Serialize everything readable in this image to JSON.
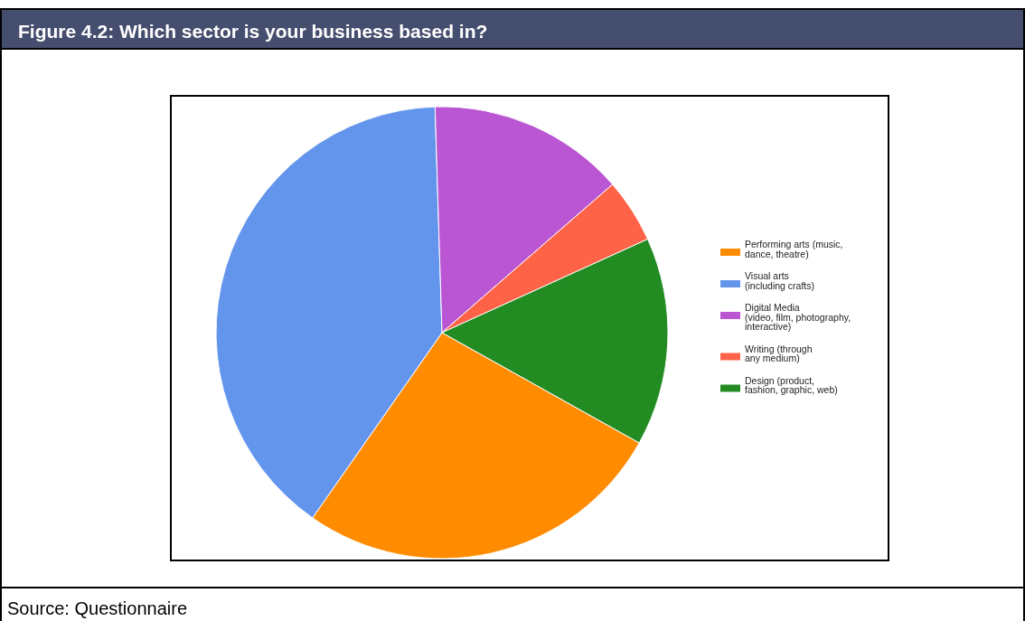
{
  "chart_data": {
    "type": "pie",
    "title": "Figure 4.2: Which sector is your business based in?",
    "categories": [
      "Performing arts (music,\ndance, theatre)",
      "Visual arts\n(including crafts)",
      "Digital Media\n(video, film, photography,\ninteractive)",
      "Writing (through\nany medium)",
      "Design (product,\nfashion, graphic, web)"
    ],
    "values": [
      26.6,
      39.8,
      14.1,
      4.6,
      14.9
    ],
    "colors": [
      "#ff8c00",
      "#6495ed",
      "#ba55d3",
      "#ff6347",
      "#228b22"
    ],
    "legend": "right",
    "annotations": [
      "Source: Questionnaire"
    ]
  }
}
